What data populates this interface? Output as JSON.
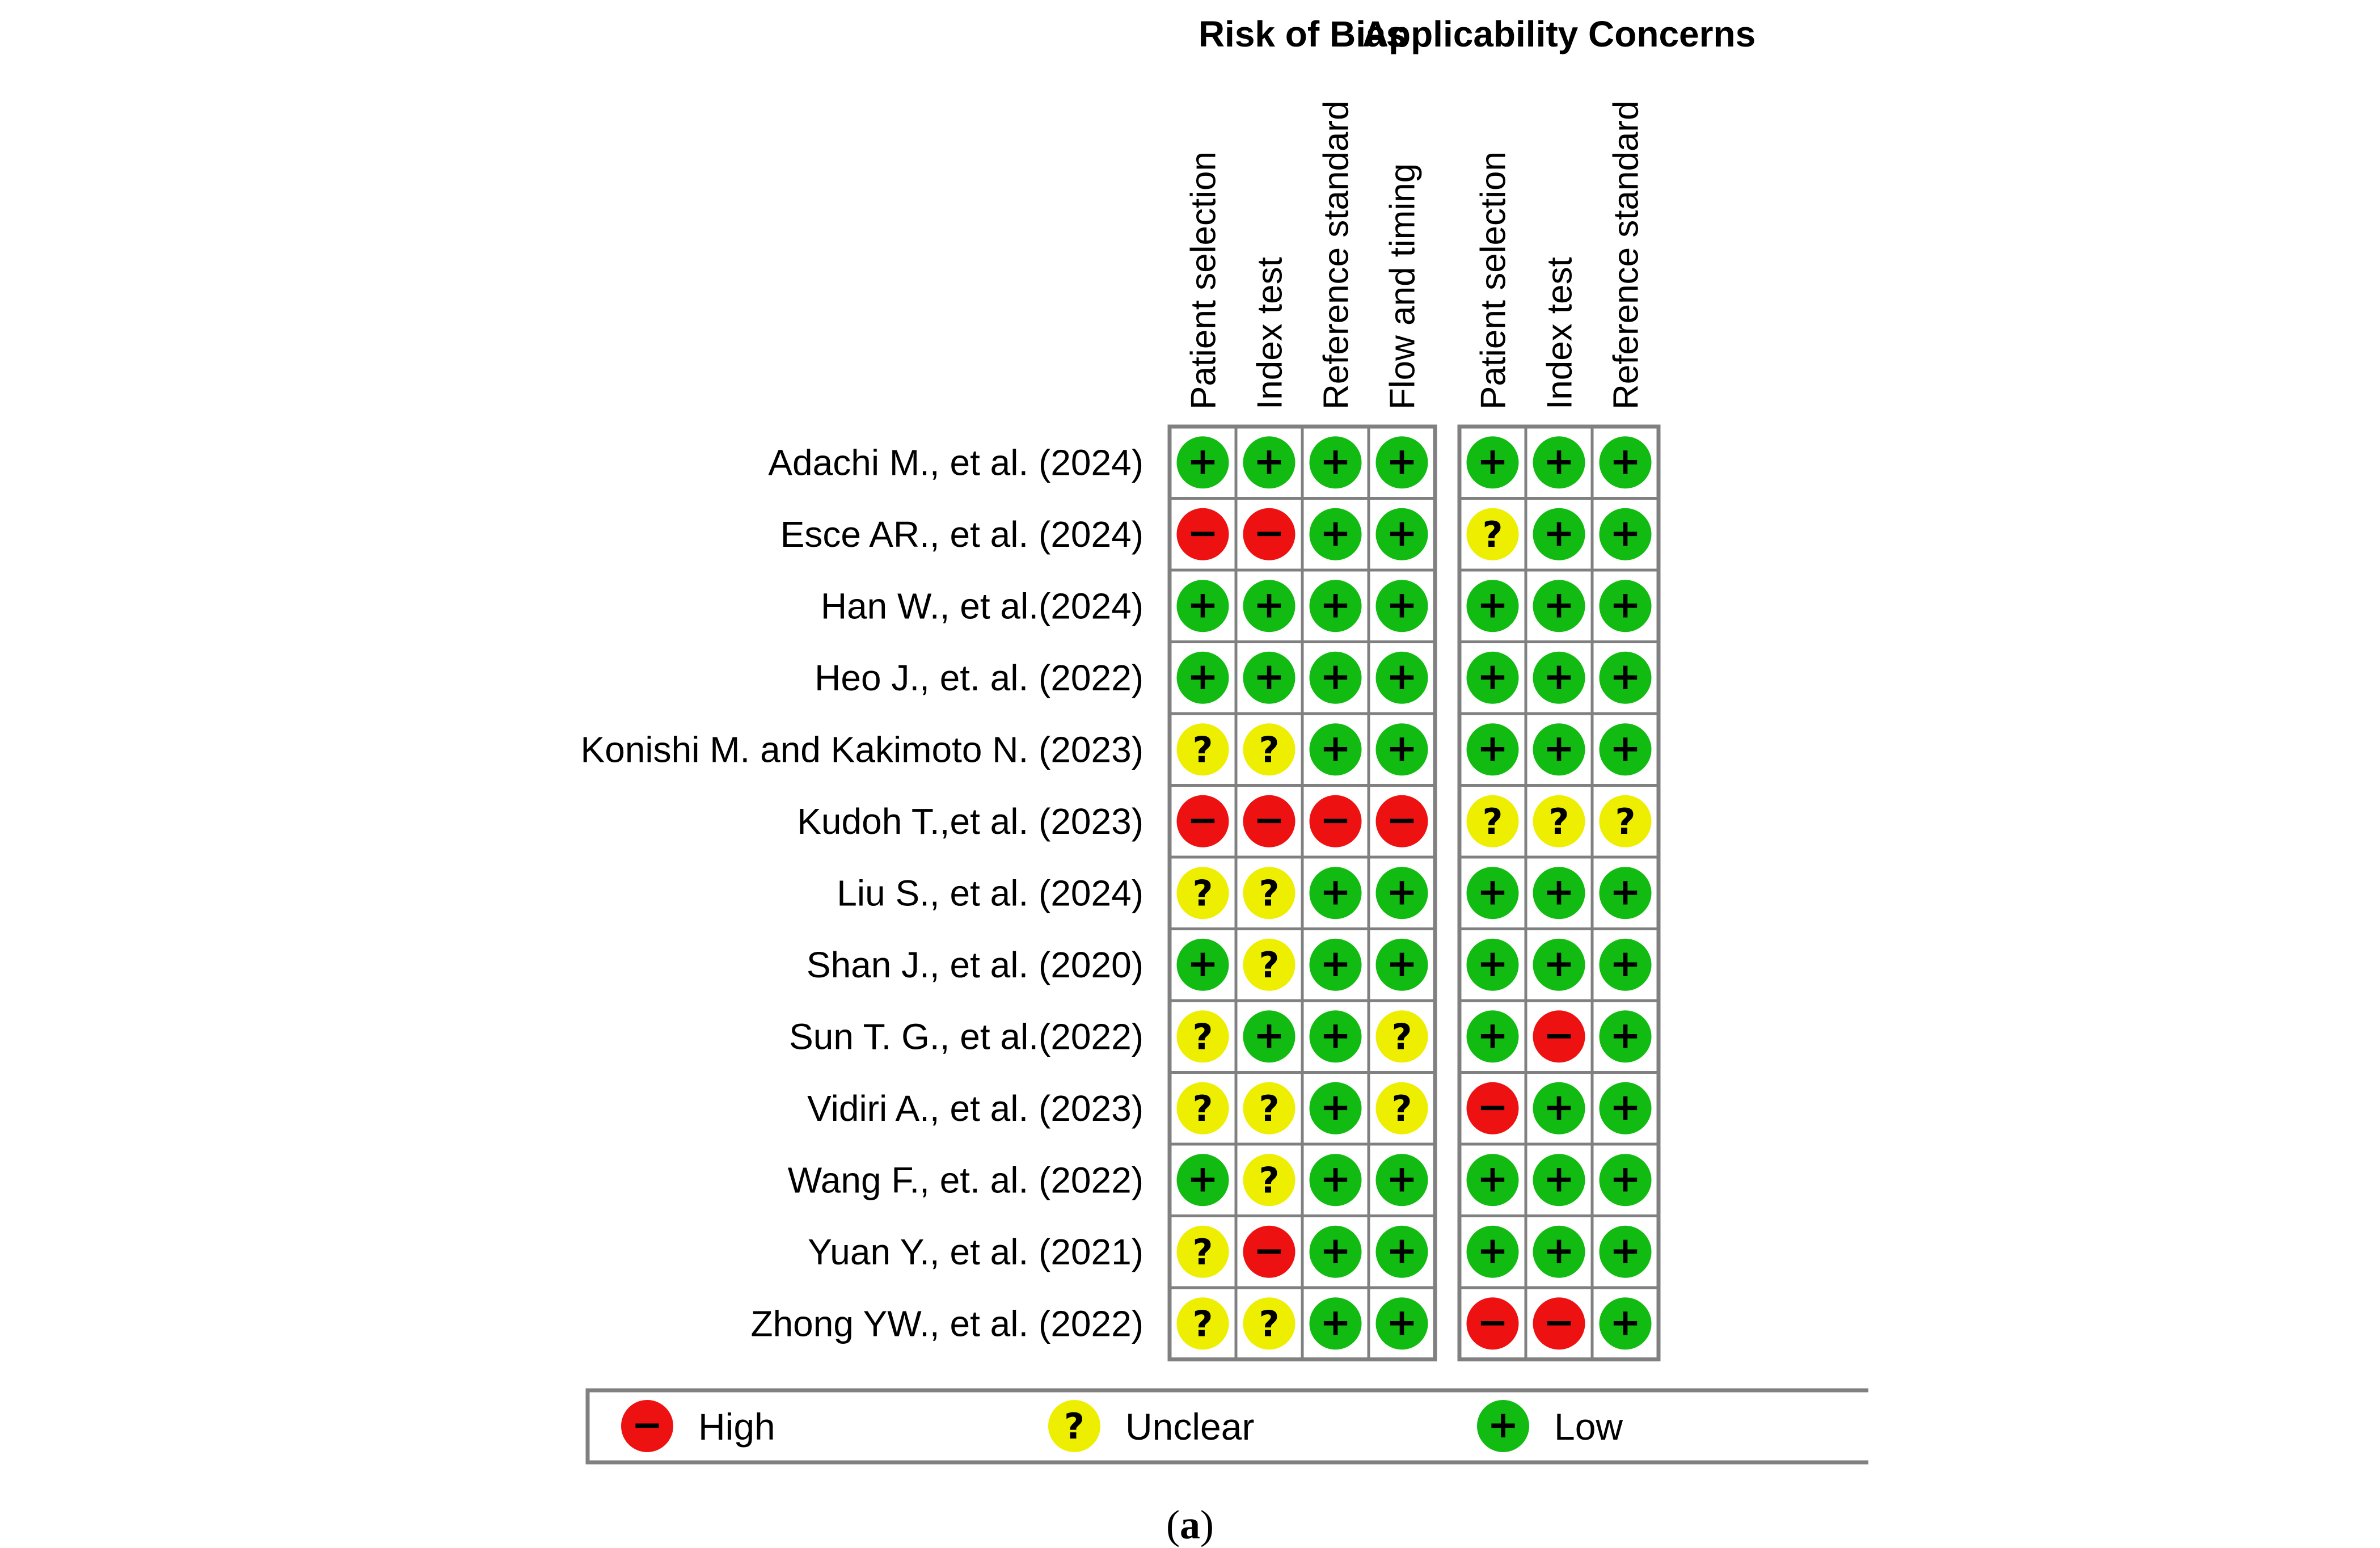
{
  "chart_data": {
    "type": "table",
    "groups": [
      {
        "title": "Risk of Bias",
        "columns": [
          "Patient selection",
          "Index test",
          "Reference standard",
          "Flow and timing"
        ]
      },
      {
        "title": "Applicability Concerns",
        "columns": [
          "Patient selection",
          "Index test",
          "Reference standard"
        ]
      }
    ],
    "studies": [
      {
        "label": "Adachi M., et al. (2024)",
        "risk": [
          "low",
          "low",
          "low",
          "low"
        ],
        "applicability": [
          "low",
          "low",
          "low"
        ]
      },
      {
        "label": "Esce AR., et al. (2024)",
        "risk": [
          "high",
          "high",
          "low",
          "low"
        ],
        "applicability": [
          "unclear",
          "low",
          "low"
        ]
      },
      {
        "label": "Han W., et al.(2024)",
        "risk": [
          "low",
          "low",
          "low",
          "low"
        ],
        "applicability": [
          "low",
          "low",
          "low"
        ]
      },
      {
        "label": "Heo J., et. al. (2022)",
        "risk": [
          "low",
          "low",
          "low",
          "low"
        ],
        "applicability": [
          "low",
          "low",
          "low"
        ]
      },
      {
        "label": "Konishi M. and Kakimoto N. (2023)",
        "risk": [
          "unclear",
          "unclear",
          "low",
          "low"
        ],
        "applicability": [
          "low",
          "low",
          "low"
        ]
      },
      {
        "label": "Kudoh T.,et al. (2023)",
        "risk": [
          "high",
          "high",
          "high",
          "high"
        ],
        "applicability": [
          "unclear",
          "unclear",
          "unclear"
        ]
      },
      {
        "label": "Liu S., et al. (2024)",
        "risk": [
          "unclear",
          "unclear",
          "low",
          "low"
        ],
        "applicability": [
          "low",
          "low",
          "low"
        ]
      },
      {
        "label": "Shan J., et  al. (2020)",
        "risk": [
          "low",
          "unclear",
          "low",
          "low"
        ],
        "applicability": [
          "low",
          "low",
          "low"
        ]
      },
      {
        "label": "Sun T. G.,  et al.(2022)",
        "risk": [
          "unclear",
          "low",
          "low",
          "unclear"
        ],
        "applicability": [
          "low",
          "high",
          "low"
        ]
      },
      {
        "label": "Vidiri A., et al. (2023)",
        "risk": [
          "unclear",
          "unclear",
          "low",
          "unclear"
        ],
        "applicability": [
          "high",
          "low",
          "low"
        ]
      },
      {
        "label": "Wang F., et. al. (2022)",
        "risk": [
          "low",
          "unclear",
          "low",
          "low"
        ],
        "applicability": [
          "low",
          "low",
          "low"
        ]
      },
      {
        "label": "Yuan Y., et al. (2021)",
        "risk": [
          "unclear",
          "high",
          "low",
          "low"
        ],
        "applicability": [
          "low",
          "low",
          "low"
        ]
      },
      {
        "label": "Zhong YW., et al. (2022)",
        "risk": [
          "unclear",
          "unclear",
          "low",
          "low"
        ],
        "applicability": [
          "high",
          "high",
          "low"
        ]
      }
    ],
    "legend": [
      {
        "key": "high",
        "label": "High",
        "symbol": "−",
        "color": "#ee1111"
      },
      {
        "key": "unclear",
        "label": "Unclear",
        "symbol": "?",
        "color": "#eeee00"
      },
      {
        "key": "low",
        "label": "Low",
        "symbol": "+",
        "color": "#11bb11"
      }
    ],
    "caption": {
      "open": "(",
      "letter": "a",
      "close": ")"
    }
  }
}
